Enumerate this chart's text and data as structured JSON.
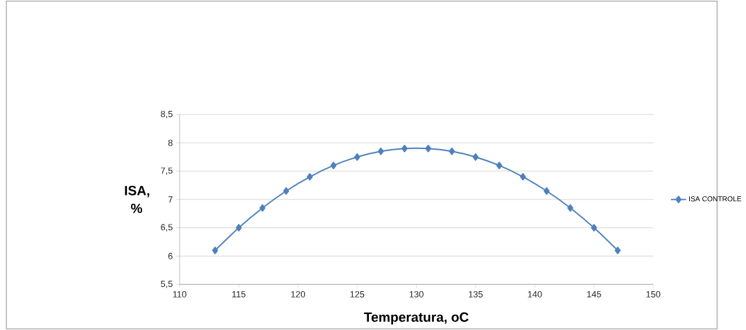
{
  "chart_data": {
    "type": "line",
    "xlabel": "Temperatura, oC",
    "ylabel": "ISA, %",
    "x": [
      113,
      115,
      117,
      119,
      121,
      123,
      125,
      127,
      129,
      131,
      133,
      135,
      137,
      139,
      141,
      143,
      145,
      147
    ],
    "series": [
      {
        "name": "ISA CONTROLE",
        "color": "#4f81bd",
        "values": [
          6.1,
          6.5,
          6.85,
          7.15,
          7.4,
          7.6,
          7.75,
          7.85,
          7.9,
          7.9,
          7.85,
          7.75,
          7.6,
          7.4,
          7.15,
          6.85,
          6.5,
          6.1
        ]
      }
    ],
    "xlim": [
      110,
      150
    ],
    "xticks": [
      110,
      115,
      120,
      125,
      130,
      135,
      140,
      145,
      150
    ],
    "ylim": [
      5.5,
      8.5
    ],
    "yticks": [
      {
        "value": 5.5,
        "label": "5,5"
      },
      6,
      {
        "value": 6.5,
        "label": "6,5"
      },
      7,
      {
        "value": 7.5,
        "label": "7,5"
      },
      8,
      {
        "value": 8.5,
        "label": "8,5"
      }
    ],
    "grid": "y",
    "legend": "right",
    "marker": "diamond",
    "line_style": "solid"
  }
}
